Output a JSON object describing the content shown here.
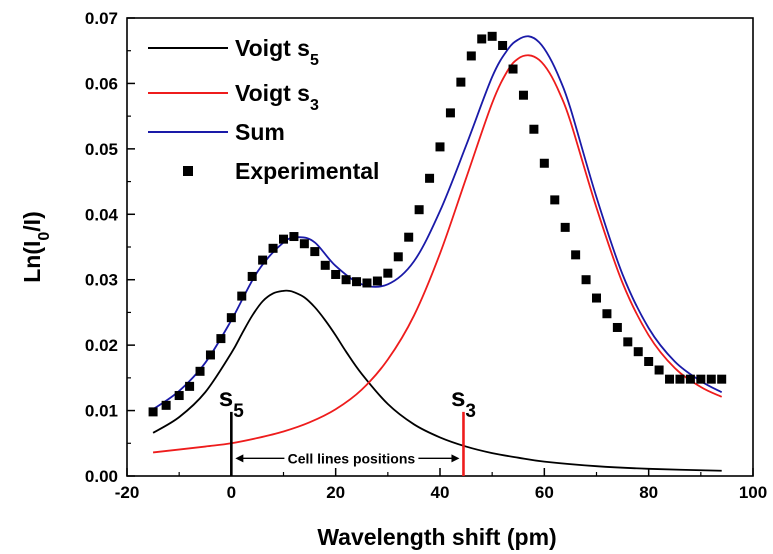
{
  "chart_data": {
    "type": "line",
    "xlabel": "Wavelength shift (pm)",
    "ylabel_main": "Ln(I",
    "ylabel_sub": "0",
    "ylabel_tail": "/I)",
    "xlim": [
      -20,
      100
    ],
    "ylim": [
      0.0,
      0.07
    ],
    "xticks": [
      -20,
      0,
      20,
      40,
      60,
      80,
      100
    ],
    "xtick_labels": [
      "-20",
      "0",
      "20",
      "40",
      "60",
      "80",
      "100"
    ],
    "yticks": [
      0.0,
      0.01,
      0.02,
      0.03,
      0.04,
      0.05,
      0.06,
      0.07
    ],
    "ytick_labels": [
      "0.00",
      "0.01",
      "0.02",
      "0.03",
      "0.04",
      "0.05",
      "0.06",
      "0.07"
    ],
    "grid": false,
    "legend_position": "top-left",
    "series": [
      {
        "key": "s5",
        "name_main": "Voigt s",
        "name_sub": "5",
        "color": "#000000",
        "style": "line",
        "x": [
          -15,
          -10,
          -5,
          0,
          2,
          4,
          6,
          8,
          10,
          11,
          12,
          14,
          16,
          18,
          20,
          22,
          25,
          30,
          35,
          40,
          45,
          50,
          55,
          60,
          70,
          80,
          94
        ],
        "y": [
          0.0066,
          0.009,
          0.0128,
          0.0188,
          0.0217,
          0.0245,
          0.0267,
          0.0279,
          0.0283,
          0.0283,
          0.0281,
          0.0273,
          0.0258,
          0.0238,
          0.0215,
          0.019,
          0.0156,
          0.011,
          0.0079,
          0.0059,
          0.0045,
          0.0035,
          0.0028,
          0.0022,
          0.0015,
          0.0011,
          0.0008
        ]
      },
      {
        "key": "s3",
        "name_main": "Voigt s",
        "name_sub": "3",
        "color": "#ee1c1c",
        "style": "line",
        "x": [
          -15,
          -5,
          0,
          5,
          10,
          15,
          20,
          25,
          30,
          35,
          40,
          45,
          50,
          53,
          55,
          57,
          59,
          61,
          63,
          65,
          70,
          75,
          80,
          85,
          90,
          94
        ],
        "y": [
          0.0036,
          0.0045,
          0.005,
          0.0058,
          0.0068,
          0.0082,
          0.0102,
          0.0132,
          0.0178,
          0.0245,
          0.034,
          0.0455,
          0.057,
          0.062,
          0.0638,
          0.0643,
          0.0636,
          0.0616,
          0.0584,
          0.0542,
          0.041,
          0.0295,
          0.0215,
          0.0165,
          0.0136,
          0.0121
        ]
      },
      {
        "key": "sum",
        "name_main": "Sum",
        "name_sub": "",
        "color": "#1a1aa8",
        "style": "line",
        "x": [
          -15,
          -10,
          -5,
          0,
          5,
          10,
          13,
          16,
          20,
          25,
          30,
          35,
          40,
          45,
          50,
          53,
          55,
          57,
          59,
          61,
          63,
          65,
          70,
          75,
          80,
          85,
          90,
          94
        ],
        "y": [
          0.0102,
          0.013,
          0.0173,
          0.0238,
          0.0312,
          0.0357,
          0.0365,
          0.0357,
          0.0321,
          0.0293,
          0.0293,
          0.0328,
          0.0405,
          0.0505,
          0.061,
          0.0652,
          0.0667,
          0.0672,
          0.0663,
          0.064,
          0.0606,
          0.0562,
          0.0426,
          0.0308,
          0.0226,
          0.0175,
          0.0145,
          0.0128
        ]
      },
      {
        "key": "exp",
        "name_main": "Experimental",
        "name_sub": "",
        "color": "#000000",
        "style": "scatter",
        "x": [
          -15,
          -12.5,
          -10,
          -8,
          -6,
          -4,
          -2,
          0,
          2,
          4,
          6,
          8,
          10,
          12,
          14,
          16,
          18,
          20,
          22,
          24,
          26,
          28,
          30,
          32,
          34,
          36,
          38,
          40,
          42,
          44,
          46,
          48,
          50,
          52,
          54,
          56,
          58,
          60,
          62,
          64,
          66,
          68,
          70,
          72,
          74,
          76,
          78,
          80,
          82,
          84,
          86,
          88,
          90,
          92,
          94
        ],
        "y": [
          0.0098,
          0.0108,
          0.0123,
          0.0137,
          0.016,
          0.0185,
          0.021,
          0.0242,
          0.0275,
          0.0305,
          0.033,
          0.0348,
          0.0362,
          0.0366,
          0.0355,
          0.0343,
          0.0322,
          0.0308,
          0.03,
          0.0297,
          0.0295,
          0.0298,
          0.031,
          0.0335,
          0.0365,
          0.0407,
          0.0455,
          0.0503,
          0.0555,
          0.0602,
          0.0642,
          0.0668,
          0.0672,
          0.0658,
          0.0622,
          0.0582,
          0.053,
          0.0478,
          0.0422,
          0.038,
          0.0338,
          0.03,
          0.0272,
          0.0248,
          0.0227,
          0.0205,
          0.019,
          0.0175,
          0.0162,
          0.0148,
          0.0148,
          0.0148,
          0.0148,
          0.0148,
          0.0148
        ]
      }
    ],
    "cell_lines": [
      {
        "key": "s5",
        "x": 0,
        "y_top": 0.0098,
        "label_main": "s",
        "label_sub": "5",
        "color": "#000000"
      },
      {
        "key": "s3",
        "x": 44.5,
        "y_top": 0.0098,
        "label_main": "s",
        "label_sub": "3",
        "color": "#ee1c1c"
      }
    ],
    "annotation": {
      "text": "Cell lines positions",
      "y": 0.0027
    }
  }
}
